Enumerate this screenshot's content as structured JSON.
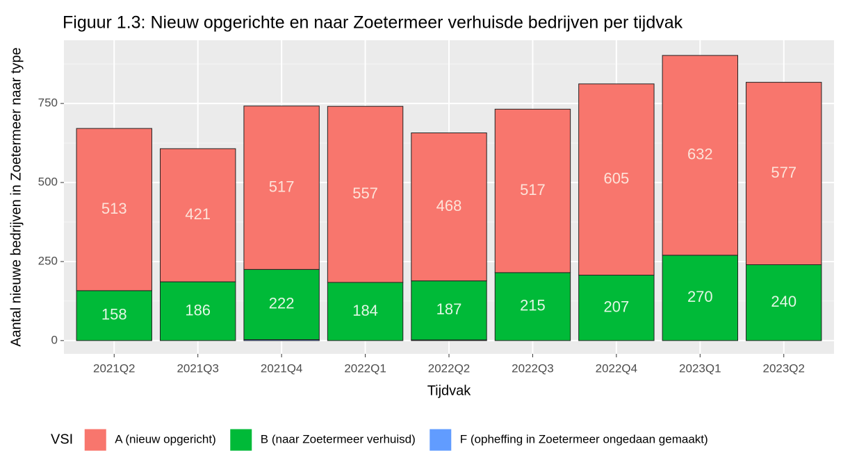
{
  "chart_data": {
    "type": "bar",
    "stacked": true,
    "title": "Figuur 1.3: Nieuw opgerichte en naar Zoetermeer verhuisde bedrijven per tijdvak",
    "xlabel": "Tijdvak",
    "ylabel": "Aantal nieuwe bedrijven in Zoetermeer naar type",
    "legend_title": "VSI",
    "legend_position": "bottom",
    "grid": true,
    "categories": [
      "2021Q2",
      "2021Q3",
      "2021Q4",
      "2022Q1",
      "2022Q2",
      "2022Q3",
      "2022Q4",
      "2023Q1",
      "2023Q2"
    ],
    "series": [
      {
        "name": "A (nieuw opgericht)",
        "color": "#F8766D",
        "show_labels": true,
        "values": [
          513,
          421,
          517,
          557,
          468,
          517,
          605,
          632,
          577
        ]
      },
      {
        "name": "B (naar Zoetermeer verhuisd)",
        "color": "#00BA38",
        "show_labels": true,
        "values": [
          158,
          186,
          222,
          184,
          187,
          215,
          207,
          270,
          240
        ]
      },
      {
        "name": "F (opheffing in Zoetermeer ongedaan gemaakt)",
        "color": "#619CFF",
        "show_labels": false,
        "values": [
          0,
          0,
          3,
          0,
          2,
          0,
          0,
          0,
          0
        ]
      }
    ],
    "ylim": [
      -42,
      950
    ],
    "yticks": [
      0,
      250,
      500,
      750
    ]
  }
}
